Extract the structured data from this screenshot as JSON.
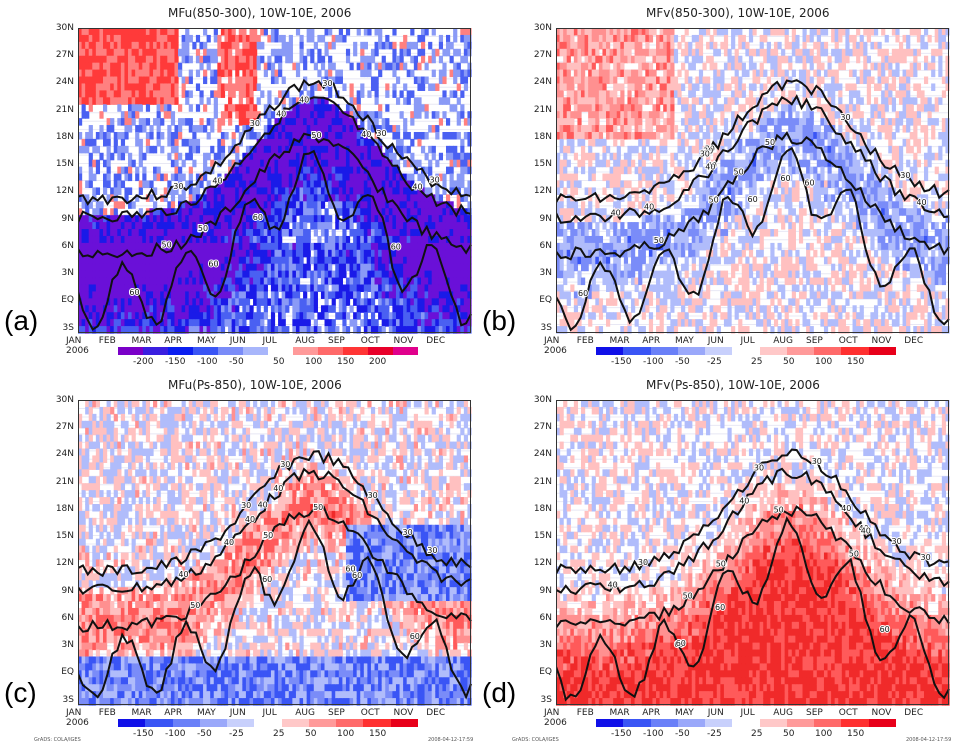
{
  "chart_data": [
    {
      "type": "heatmap",
      "panel_label": "(a)",
      "title": "MFu(850-300), 10W-10E, 2006",
      "y_ticks": [
        "30N",
        "27N",
        "24N",
        "21N",
        "18N",
        "15N",
        "12N",
        "9N",
        "6N",
        "3N",
        "EQ",
        "3S"
      ],
      "x_ticks": [
        "JAN",
        "FEB",
        "MAR",
        "APR",
        "MAY",
        "JUN",
        "JUL",
        "AUG",
        "SEP",
        "OCT",
        "NOV",
        "DEC"
      ],
      "x_year": "2006",
      "colorbar_ticks": [
        "-200",
        "-150",
        "-100",
        "-50",
        "50",
        "100",
        "150",
        "200"
      ],
      "colorbar_colors": [
        "#7a00c8",
        "#3a1fe0",
        "#0a1ef0",
        "#3a55f5",
        "#7a8cf8",
        "#a8b6fb",
        "#ffffff",
        "#ff9a9a",
        "#ff6a6a",
        "#ff3535",
        "#e8002a",
        "#e0008c"
      ],
      "field": "negative",
      "contour_labels": [
        "30",
        "40",
        "50",
        "60"
      ]
    },
    {
      "type": "heatmap",
      "panel_label": "(b)",
      "title": "MFv(850-300), 10W-10E, 2006",
      "y_ticks": [
        "30N",
        "27N",
        "24N",
        "21N",
        "18N",
        "15N",
        "12N",
        "9N",
        "6N",
        "3N",
        "EQ",
        "3S"
      ],
      "x_ticks": [
        "JAN",
        "FEB",
        "MAR",
        "APR",
        "MAY",
        "JUN",
        "JUL",
        "AUG",
        "SEP",
        "OCT",
        "NOV",
        "DEC"
      ],
      "x_year": "2006",
      "colorbar_ticks": [
        "-150",
        "-100",
        "-50",
        "-25",
        "25",
        "50",
        "100",
        "150"
      ],
      "colorbar_colors": [
        "#1010e8",
        "#3a55f5",
        "#6a80f8",
        "#9aa8fa",
        "#c8d0fc",
        "#ffffff",
        "#ffc8c8",
        "#ff9a9a",
        "#ff6a6a",
        "#ff3030",
        "#e8001a"
      ],
      "field": "weak",
      "contour_labels": [
        "30",
        "40",
        "50",
        "60"
      ]
    },
    {
      "type": "heatmap",
      "panel_label": "(c)",
      "title": "MFu(Ps-850), 10W-10E, 2006",
      "y_ticks": [
        "30N",
        "27N",
        "24N",
        "21N",
        "18N",
        "15N",
        "12N",
        "9N",
        "6N",
        "3N",
        "EQ",
        "3S"
      ],
      "x_ticks": [
        "JAN",
        "FEB",
        "MAR",
        "APR",
        "MAY",
        "JUN",
        "JUL",
        "AUG",
        "SEP",
        "OCT",
        "NOV",
        "DEC"
      ],
      "x_year": "2006",
      "colorbar_ticks": [
        "-150",
        "-100",
        "-50",
        "-25",
        "25",
        "50",
        "100",
        "150"
      ],
      "colorbar_colors": [
        "#1010e8",
        "#3a55f5",
        "#6a80f8",
        "#9aa8fa",
        "#c8d0fc",
        "#ffffff",
        "#ffc8c8",
        "#ff9a9a",
        "#ff6a6a",
        "#ff3030",
        "#e8001a"
      ],
      "field": "mixed",
      "contour_labels": [
        "30",
        "40",
        "50",
        "60"
      ]
    },
    {
      "type": "heatmap",
      "panel_label": "(d)",
      "title": "MFv(Ps-850), 10W-10E, 2006",
      "y_ticks": [
        "30N",
        "27N",
        "24N",
        "21N",
        "18N",
        "15N",
        "12N",
        "9N",
        "6N",
        "3N",
        "EQ",
        "3S"
      ],
      "x_ticks": [
        "JAN",
        "FEB",
        "MAR",
        "APR",
        "MAY",
        "JUN",
        "JUL",
        "AUG",
        "SEP",
        "OCT",
        "NOV",
        "DEC"
      ],
      "x_year": "2006",
      "colorbar_ticks": [
        "-150",
        "-100",
        "-50",
        "-25",
        "25",
        "50",
        "100",
        "150"
      ],
      "colorbar_colors": [
        "#1010e8",
        "#3a55f5",
        "#6a80f8",
        "#9aa8fa",
        "#c8d0fc",
        "#ffffff",
        "#ffc8c8",
        "#ff9a9a",
        "#ff6a6a",
        "#ff3030",
        "#e8001a"
      ],
      "field": "positive",
      "contour_labels": [
        "30",
        "40",
        "50",
        "60"
      ]
    }
  ],
  "footer": {
    "left": "GrADS: COLA/IGES",
    "right": "2008-04-12-17:59"
  }
}
